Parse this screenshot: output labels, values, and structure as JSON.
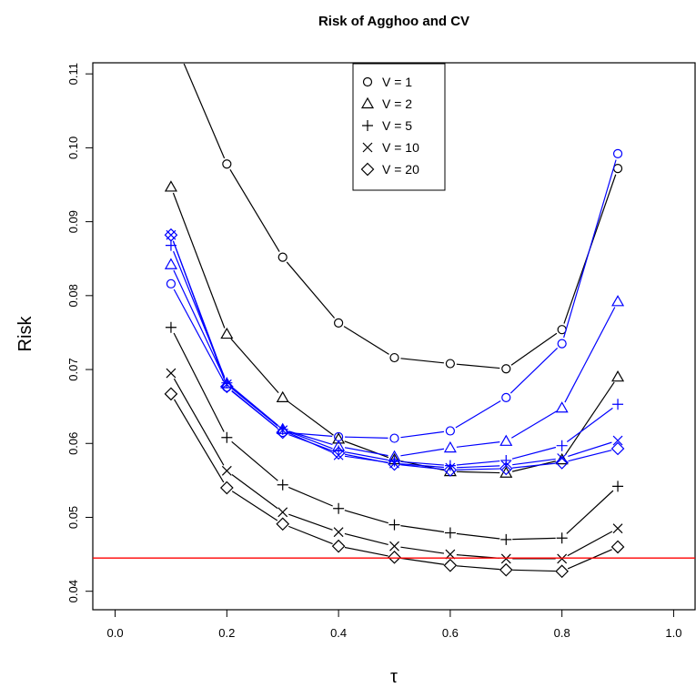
{
  "chart_data": {
    "type": "line",
    "title": "Risk of Agghoo and CV",
    "xlabel": "τ",
    "ylabel": "Risk",
    "xlim": [
      -0.04,
      1.04
    ],
    "ylim": [
      0.0375,
      0.1115
    ],
    "xticks": [
      0.0,
      0.2,
      0.4,
      0.6,
      0.8,
      1.0
    ],
    "xtick_labels": [
      "0.0",
      "0.2",
      "0.4",
      "0.6",
      "0.8",
      "1.0"
    ],
    "yticks": [
      0.04,
      0.05,
      0.06,
      0.07,
      0.08,
      0.09,
      0.1,
      0.11
    ],
    "ytick_labels": [
      "0.04",
      "0.05",
      "0.06",
      "0.07",
      "0.08",
      "0.09",
      "0.10",
      "0.11"
    ],
    "legend_position": "top-center",
    "legend": [
      {
        "label": "V = 1",
        "marker": "circle"
      },
      {
        "label": "V = 2",
        "marker": "triangle"
      },
      {
        "label": "V = 5",
        "marker": "plus"
      },
      {
        "label": "V = 10",
        "marker": "cross"
      },
      {
        "label": "V = 20",
        "marker": "diamond"
      }
    ],
    "x": [
      0.1,
      0.2,
      0.3,
      0.4,
      0.5,
      0.6,
      0.7,
      0.8,
      0.9
    ],
    "series": [
      {
        "group": "black",
        "marker": "circle",
        "color": "#000000",
        "values": [
          0.1155,
          0.0978,
          0.0852,
          0.0763,
          0.0716,
          0.0708,
          0.0701,
          0.0754,
          0.0972
        ]
      },
      {
        "group": "black",
        "marker": "triangle",
        "color": "#000000",
        "values": [
          0.0947,
          0.0748,
          0.0662,
          0.0606,
          0.0578,
          0.0562,
          0.056,
          0.0578,
          0.069
        ]
      },
      {
        "group": "black",
        "marker": "plus",
        "color": "#000000",
        "values": [
          0.0757,
          0.0608,
          0.0544,
          0.0512,
          0.049,
          0.0479,
          0.047,
          0.0472,
          0.0542
        ]
      },
      {
        "group": "black",
        "marker": "cross",
        "color": "#000000",
        "values": [
          0.0695,
          0.0563,
          0.0507,
          0.048,
          0.0461,
          0.045,
          0.0444,
          0.0444,
          0.0485
        ]
      },
      {
        "group": "black",
        "marker": "diamond",
        "color": "#000000",
        "values": [
          0.0667,
          0.054,
          0.0491,
          0.0461,
          0.0446,
          0.0435,
          0.0429,
          0.0427,
          0.046
        ]
      },
      {
        "group": "blue",
        "marker": "circle",
        "color": "#0000ff",
        "values": [
          0.0816,
          0.0676,
          0.0615,
          0.0609,
          0.0607,
          0.0617,
          0.0662,
          0.0735,
          0.0992
        ]
      },
      {
        "group": "blue",
        "marker": "triangle",
        "color": "#0000ff",
        "values": [
          0.0842,
          0.0681,
          0.0619,
          0.0596,
          0.0582,
          0.0594,
          0.0603,
          0.0648,
          0.0792
        ]
      },
      {
        "group": "blue",
        "marker": "plus",
        "color": "#0000ff",
        "values": [
          0.0868,
          0.0682,
          0.0619,
          0.059,
          0.0576,
          0.057,
          0.0577,
          0.0597,
          0.0653
        ]
      },
      {
        "group": "blue",
        "marker": "cross",
        "color": "#0000ff",
        "values": [
          0.0882,
          0.068,
          0.0618,
          0.0584,
          0.0573,
          0.0567,
          0.057,
          0.058,
          0.0604
        ]
      },
      {
        "group": "blue",
        "marker": "diamond",
        "color": "#0000ff",
        "values": [
          0.0882,
          0.0677,
          0.0615,
          0.0587,
          0.0572,
          0.0564,
          0.0566,
          0.0574,
          0.0593
        ]
      }
    ],
    "hline": {
      "y": 0.0445,
      "color": "#ff0000"
    }
  }
}
